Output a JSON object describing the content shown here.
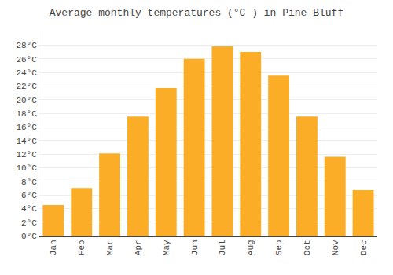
{
  "chart_data": {
    "type": "bar",
    "title": "Average monthly temperatures (°C ) in Pine Bluff",
    "categories": [
      "Jan",
      "Feb",
      "Mar",
      "Apr",
      "May",
      "Jun",
      "Jul",
      "Aug",
      "Sep",
      "Oct",
      "Nov",
      "Dec"
    ],
    "values": [
      4.5,
      7.0,
      12.1,
      17.5,
      21.7,
      26.0,
      27.8,
      27.0,
      23.5,
      17.5,
      11.6,
      6.7
    ],
    "color": "#FCAD27",
    "ylim": [
      0,
      30
    ],
    "yticks": [
      {
        "value": 0,
        "label": "0°C"
      },
      {
        "value": 2,
        "label": "2°C"
      },
      {
        "value": 4,
        "label": "4°C"
      },
      {
        "value": 6,
        "label": "6°C"
      },
      {
        "value": 8,
        "label": "8°C"
      },
      {
        "value": 10,
        "label": "10°C"
      },
      {
        "value": 12,
        "label": "12°C"
      },
      {
        "value": 14,
        "label": "14°C"
      },
      {
        "value": 16,
        "label": "16°C"
      },
      {
        "value": 18,
        "label": "18°C"
      },
      {
        "value": 20,
        "label": "20°C"
      },
      {
        "value": 22,
        "label": "22°C"
      },
      {
        "value": 24,
        "label": "24°C"
      },
      {
        "value": 26,
        "label": "26°C"
      },
      {
        "value": 28,
        "label": "28°C"
      }
    ],
    "grid": true
  }
}
